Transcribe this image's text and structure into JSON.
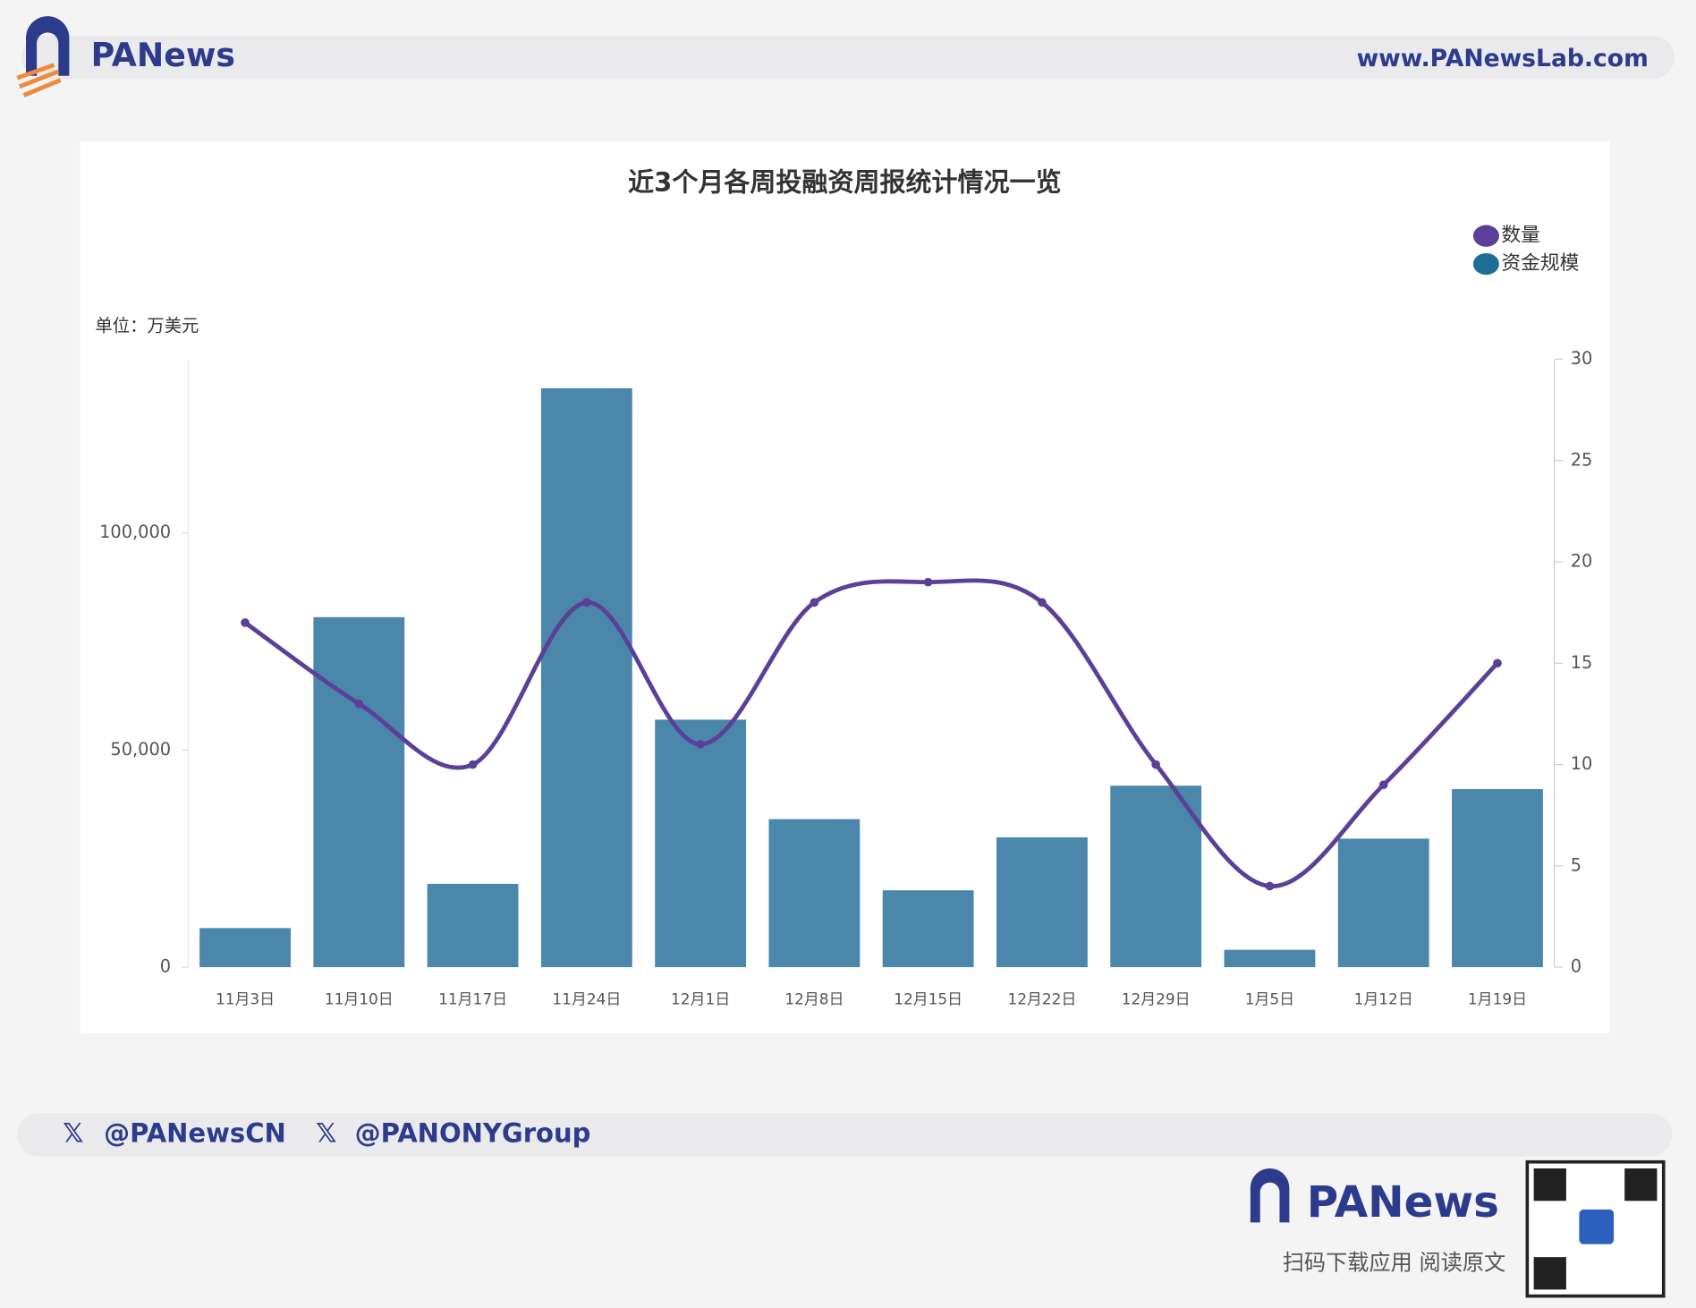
{
  "header": {
    "brand": "PANews",
    "url": "www.PANewsLab.com"
  },
  "chart_data": {
    "type": "bar_line",
    "title": "近3个月各周投融资周报统计情况一览",
    "unit_label": "单位：万美元",
    "categories": [
      "11月3日",
      "11月10日",
      "11月17日",
      "11月24日",
      "12月1日",
      "12月8日",
      "12月15日",
      "12月22日",
      "12月29日",
      "1月5日",
      "1月12日",
      "1月19日"
    ],
    "series": [
      {
        "name": "数量",
        "type": "line",
        "axis": "y2",
        "color": "#5b3f98",
        "values": [
          17,
          13,
          10,
          18,
          11,
          18,
          19,
          18,
          10,
          4,
          9,
          15
        ]
      },
      {
        "name": "资金规模",
        "type": "bar",
        "axis": "y",
        "color": "#4a87ab",
        "legend_color": "#1f6e98",
        "values": [
          9000,
          80600,
          19200,
          133300,
          57000,
          34100,
          17700,
          29900,
          41800,
          4000,
          29600,
          41000
        ]
      }
    ],
    "ylim": [
      0,
      140000
    ],
    "yticks": [
      0,
      {
        "value": 50000,
        "label": "50,000"
      },
      {
        "value": 100000,
        "label": "100,000"
      }
    ],
    "y2lim": [
      0,
      30
    ],
    "y2ticks": [
      0,
      5,
      10,
      15,
      20,
      25,
      30
    ],
    "legend": "upper right",
    "grid": false
  },
  "footer": {
    "social": [
      "@PANewsCN",
      "@PANONYGroup"
    ],
    "brand": "PANews",
    "cta": "扫码下载应用  阅读原文"
  }
}
